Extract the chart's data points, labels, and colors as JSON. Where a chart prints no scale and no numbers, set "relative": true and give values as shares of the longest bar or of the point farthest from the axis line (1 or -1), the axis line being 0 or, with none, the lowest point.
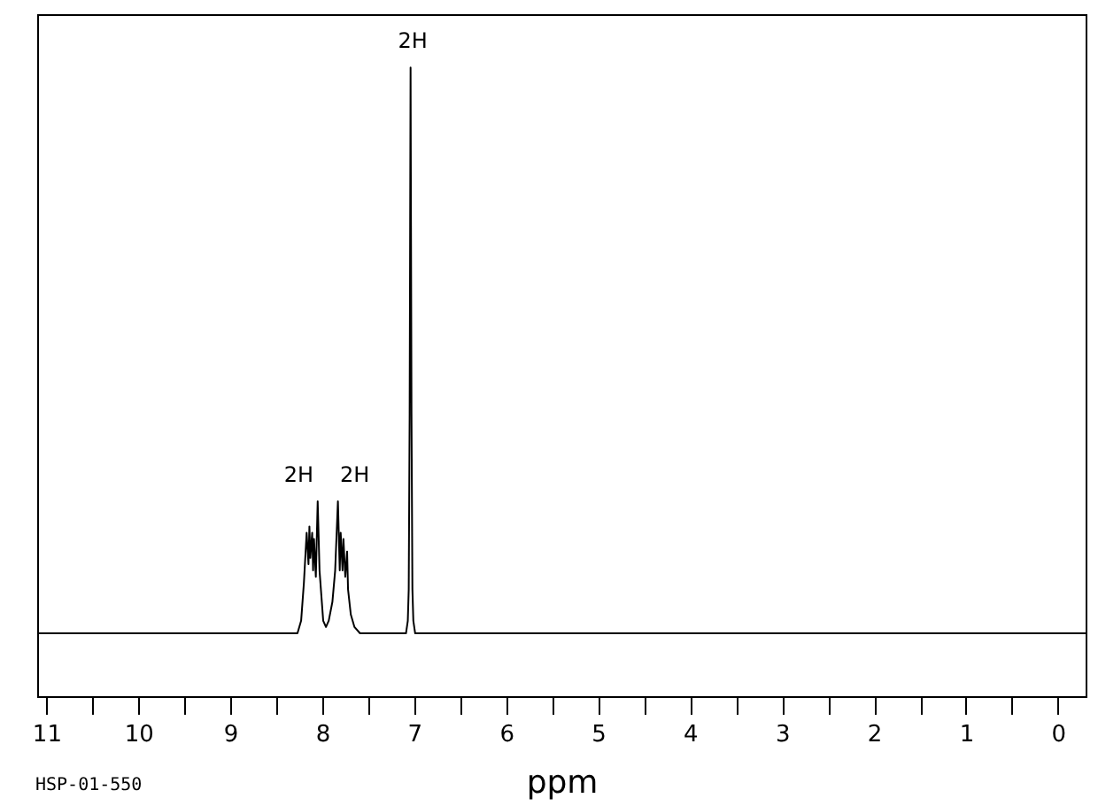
{
  "chart_data": {
    "type": "line",
    "relative": true,
    "color": "#000000",
    "x": [
      11.1,
      10.5,
      10,
      9.5,
      9,
      8.5,
      8.27,
      8.23,
      8.2,
      8.17,
      8.15,
      8.14,
      8.13,
      8.11,
      8.1,
      8.09,
      8.07,
      8.05,
      8.03,
      8.01,
      7.99,
      7.96,
      7.93,
      7.89,
      7.86,
      7.83,
      7.81,
      7.8,
      7.78,
      7.77,
      7.75,
      7.73,
      7.72,
      7.69,
      7.65,
      7.59,
      7.3,
      7.14,
      7.09,
      7.07,
      7.06,
      7.05,
      7.04,
      7.03,
      7.02,
      7.01,
      6.99,
      6.94,
      6.5,
      6,
      5,
      4,
      3,
      2,
      1,
      0,
      -0.3
    ],
    "values": [
      0.1,
      0.1,
      0.1,
      0.1,
      0.1,
      0.1,
      0.1,
      0.12,
      0.18,
      0.26,
      0.21,
      0.27,
      0.22,
      0.26,
      0.2,
      0.25,
      0.19,
      0.31,
      0.2,
      0.16,
      0.12,
      0.11,
      0.12,
      0.15,
      0.2,
      0.31,
      0.2,
      0.26,
      0.2,
      0.25,
      0.19,
      0.23,
      0.17,
      0.13,
      0.11,
      0.1,
      0.1,
      0.1,
      0.1,
      0.12,
      0.17,
      0.45,
      1,
      0.45,
      0.17,
      0.12,
      0.1,
      0.1,
      0.1,
      0.1,
      0.1,
      0.1,
      0.1,
      0.1,
      0.1,
      0.1,
      0.1
    ],
    "xlim": [
      11.1,
      -0.3
    ],
    "xticks": [
      11,
      {
        "value": 10.5,
        "label": null
      },
      10,
      {
        "value": 9.5,
        "label": null
      },
      9,
      {
        "value": 8.5,
        "label": null
      },
      8,
      {
        "value": 7.5,
        "label": null
      },
      7,
      {
        "value": 6.5,
        "label": null
      },
      6,
      {
        "value": 5.5,
        "label": null
      },
      5,
      {
        "value": 4.5,
        "label": null
      },
      4,
      {
        "value": 3.5,
        "label": null
      },
      3,
      {
        "value": 2.5,
        "label": null
      },
      2,
      {
        "value": 1.5,
        "label": null
      },
      1,
      {
        "value": 0.5,
        "label": null
      },
      0
    ],
    "xlabel": "ppm",
    "annotations": [
      {
        "text": "2H",
        "x": 8.05,
        "y": 0.31
      },
      {
        "text": "2H",
        "x": 7.83,
        "y": 0.31
      },
      {
        "text": "2H",
        "x": 7.04,
        "y": 1
      },
      "HSP-01-550"
    ]
  }
}
